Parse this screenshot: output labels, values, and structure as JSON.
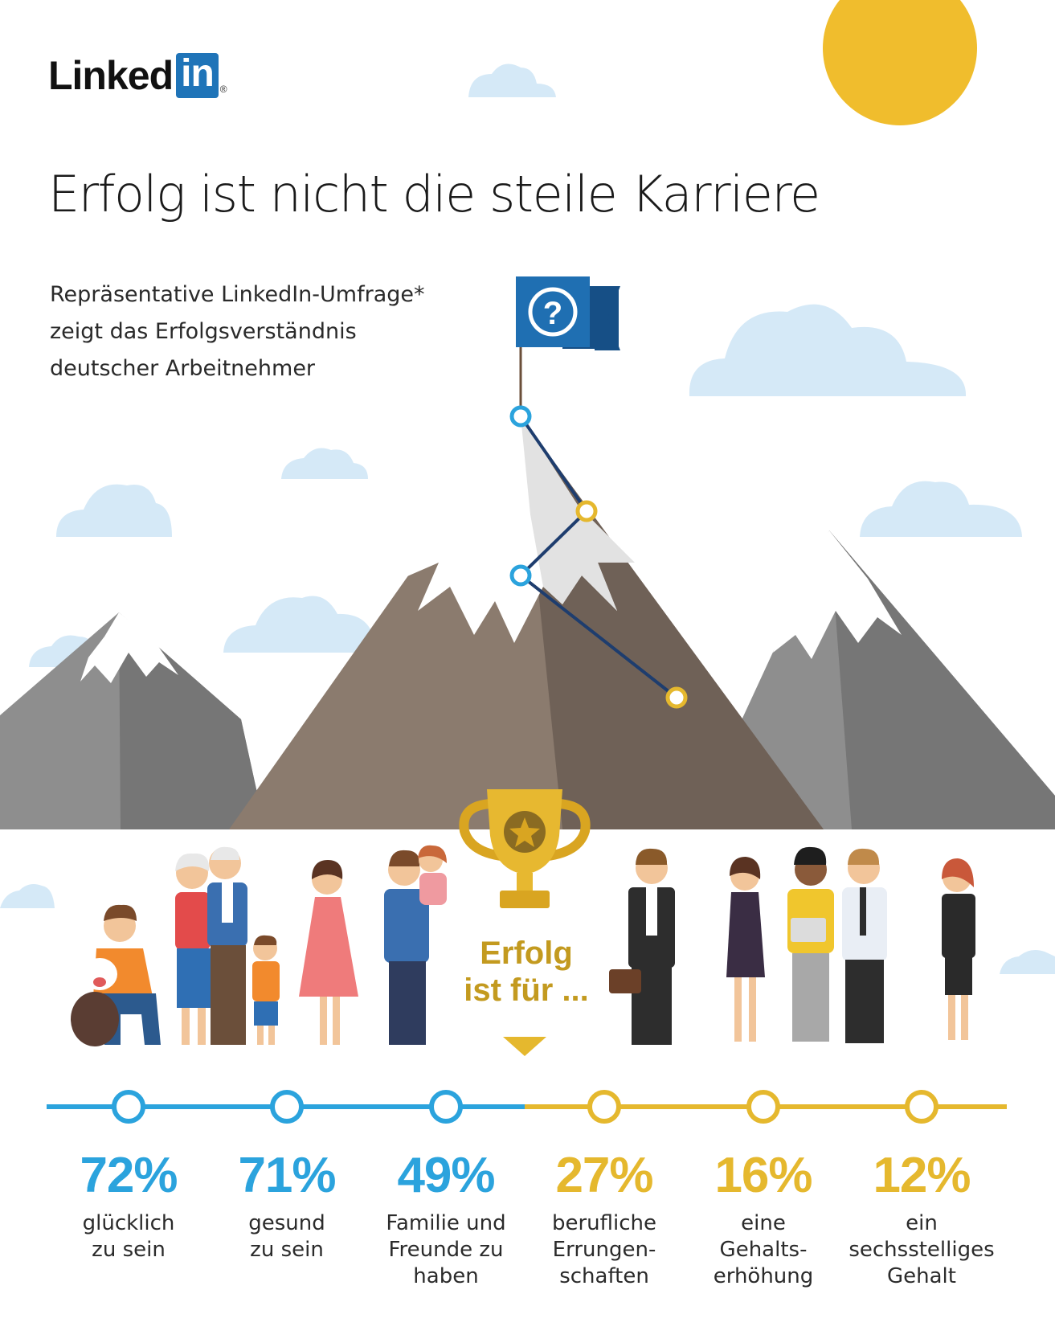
{
  "brand": {
    "logo_word": "Linked",
    "logo_box": "in",
    "logo_mark": "®",
    "brand_color": "#1f74b8"
  },
  "header": {
    "title": "Erfolg ist nicht die steile Karriere",
    "subtitle_lines": [
      "Repräsentative LinkedIn-Umfrage*",
      "zeigt das Erfolgsverständnis",
      "deutscher Arbeitnehmer"
    ]
  },
  "center": {
    "cta_lines": [
      "Erfolg",
      "ist für ..."
    ],
    "flag_symbol": "?"
  },
  "colors": {
    "blue": "#2ba3dd",
    "gold": "#e5b82e",
    "sky": "#d5e9f7",
    "sun": "#f0bd2d",
    "mountain_dark": "#7a6d62",
    "mountain_grey": "#8e8e8e",
    "snow": "#ffffff",
    "flag": "#1f6fb2",
    "trophy": "#e7b830"
  },
  "icons": [
    "linkedin-logo",
    "sun-icon",
    "cloud-icon",
    "mountain-icon",
    "flag-icon",
    "trophy-icon",
    "arrow-down-icon",
    "people-illustration"
  ],
  "chart_data": {
    "type": "bar",
    "unit": "%",
    "categories": [
      "glücklich zu sein",
      "gesund zu sein",
      "Familie und Freunde zu haben",
      "berufliche Errungenschaften",
      "eine Gehaltserhöhung",
      "ein sechsstelliges Gehalt"
    ],
    "values": [
      72,
      71,
      49,
      27,
      16,
      12
    ],
    "labels": [
      "72%",
      "71%",
      "49%",
      "27%",
      "16%",
      "12%"
    ],
    "label_lines": [
      [
        "glücklich",
        "zu sein"
      ],
      [
        "gesund",
        "zu sein"
      ],
      [
        "Familie und",
        "Freunde zu",
        "haben"
      ],
      [
        "berufliche",
        "Errungen-",
        "schaften"
      ],
      [
        "eine",
        "Gehalts-",
        "erhöhung"
      ],
      [
        "ein",
        "sechsstelliges",
        "Gehalt"
      ]
    ],
    "groups": [
      "blue",
      "blue",
      "blue",
      "gold",
      "gold",
      "gold"
    ]
  }
}
